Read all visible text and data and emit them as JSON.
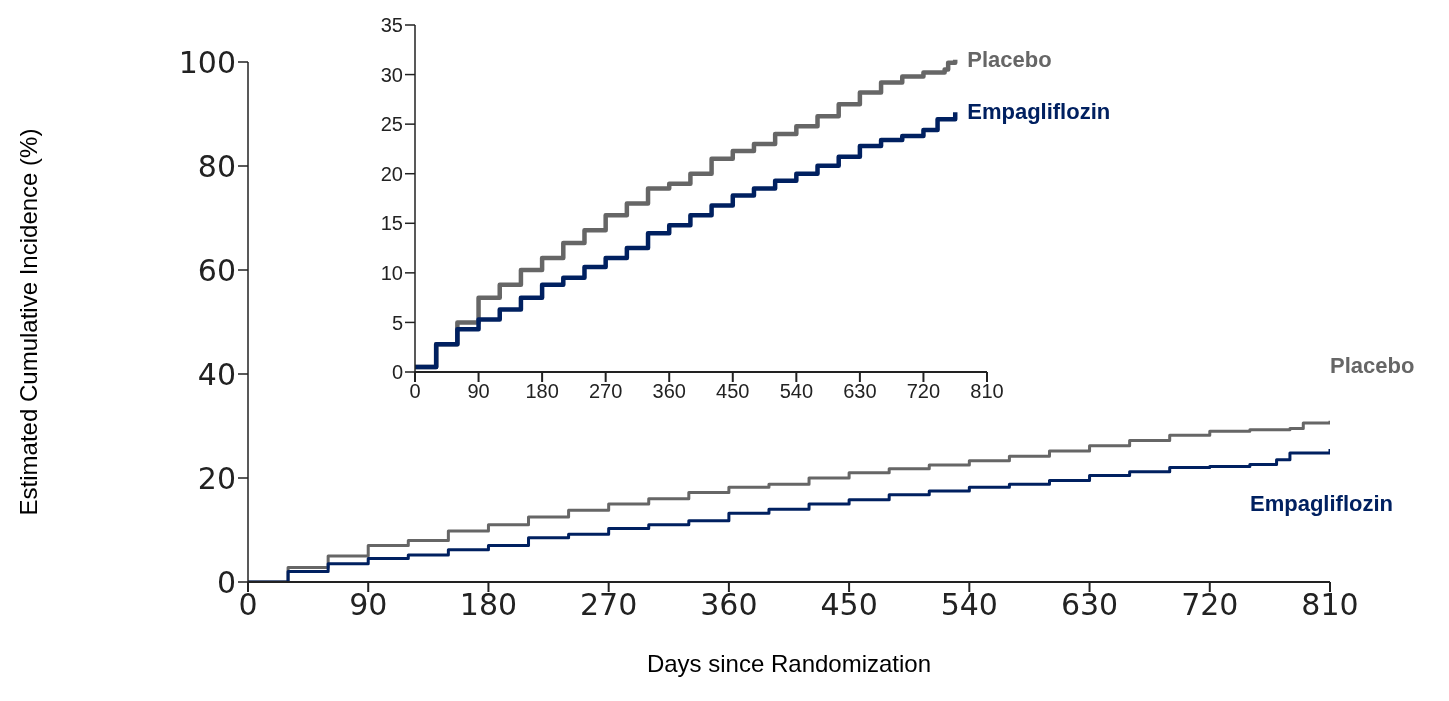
{
  "chart_data": [
    {
      "type": "step",
      "xlabel": "Days since Randomization",
      "ylabel": "Estimated Cumulative Incidence (%)",
      "xlim": [
        0,
        810
      ],
      "xticks": [
        0,
        90,
        180,
        270,
        360,
        450,
        540,
        630,
        720,
        810
      ],
      "ylim": [
        0,
        100
      ],
      "yticks": [
        0,
        20,
        40,
        60,
        80,
        100
      ],
      "grid": false,
      "series": [
        {
          "name": "Placebo",
          "color": "#666666",
          "x": [
            0,
            30,
            60,
            90,
            120,
            150,
            180,
            210,
            240,
            270,
            300,
            330,
            360,
            390,
            420,
            450,
            480,
            510,
            540,
            570,
            600,
            630,
            660,
            690,
            720,
            750,
            780,
            790,
            810
          ],
          "values": [
            0,
            2.8,
            5,
            7,
            8,
            9.8,
            11,
            12.5,
            13.8,
            15,
            16,
            17.2,
            18.2,
            18.8,
            20,
            21,
            21.8,
            22.5,
            23.3,
            24.2,
            25.2,
            26.2,
            27.2,
            28.2,
            29,
            29.3,
            29.5,
            30.6,
            31
          ]
        },
        {
          "name": "Empagliflozin",
          "color": "#002060",
          "x": [
            0,
            30,
            60,
            90,
            120,
            150,
            180,
            210,
            240,
            270,
            300,
            330,
            360,
            390,
            420,
            450,
            480,
            510,
            540,
            570,
            600,
            630,
            660,
            690,
            720,
            750,
            770,
            780,
            810
          ],
          "values": [
            0,
            2,
            3.5,
            4.5,
            5.2,
            6.2,
            7,
            8.5,
            9.2,
            10.3,
            11,
            11.8,
            13.2,
            14,
            15,
            15.8,
            16.8,
            17.5,
            18.2,
            18.8,
            19.5,
            20.5,
            21.2,
            22,
            22.2,
            22.6,
            23.5,
            24.8,
            25.6
          ]
        }
      ]
    },
    {
      "type": "step",
      "xlim": [
        0,
        810
      ],
      "xticks": [
        0,
        90,
        180,
        270,
        360,
        450,
        540,
        630,
        720,
        810
      ],
      "ylim": [
        0,
        35
      ],
      "yticks": [
        0,
        5,
        10,
        15,
        20,
        25,
        30,
        35
      ],
      "grid": false,
      "series": [
        {
          "name": "Placebo",
          "color": "#666666",
          "x": [
            0,
            30,
            60,
            90,
            120,
            150,
            180,
            210,
            240,
            270,
            300,
            330,
            360,
            390,
            420,
            450,
            480,
            510,
            540,
            570,
            600,
            630,
            660,
            690,
            720,
            750,
            755,
            765
          ],
          "values": [
            0.5,
            2.8,
            5,
            7.5,
            8.8,
            10.3,
            11.5,
            13,
            14.3,
            15.8,
            17,
            18.5,
            19,
            20,
            21.5,
            22.3,
            23,
            24,
            24.8,
            25.8,
            27,
            28.2,
            29.2,
            29.8,
            30.2,
            30.5,
            31.2,
            31.5
          ]
        },
        {
          "name": "Empagliflozin",
          "color": "#002060",
          "x": [
            0,
            30,
            60,
            90,
            120,
            150,
            180,
            210,
            240,
            270,
            300,
            330,
            360,
            390,
            420,
            450,
            480,
            510,
            540,
            570,
            600,
            630,
            660,
            690,
            720,
            740,
            765
          ],
          "values": [
            0.5,
            2.8,
            4.3,
            5.3,
            6.3,
            7.5,
            8.8,
            9.5,
            10.6,
            11.5,
            12.5,
            14,
            14.8,
            15.8,
            16.8,
            17.8,
            18.5,
            19.3,
            20,
            20.8,
            21.7,
            22.8,
            23.4,
            23.8,
            24.4,
            25.5,
            26.2
          ]
        }
      ]
    }
  ]
}
